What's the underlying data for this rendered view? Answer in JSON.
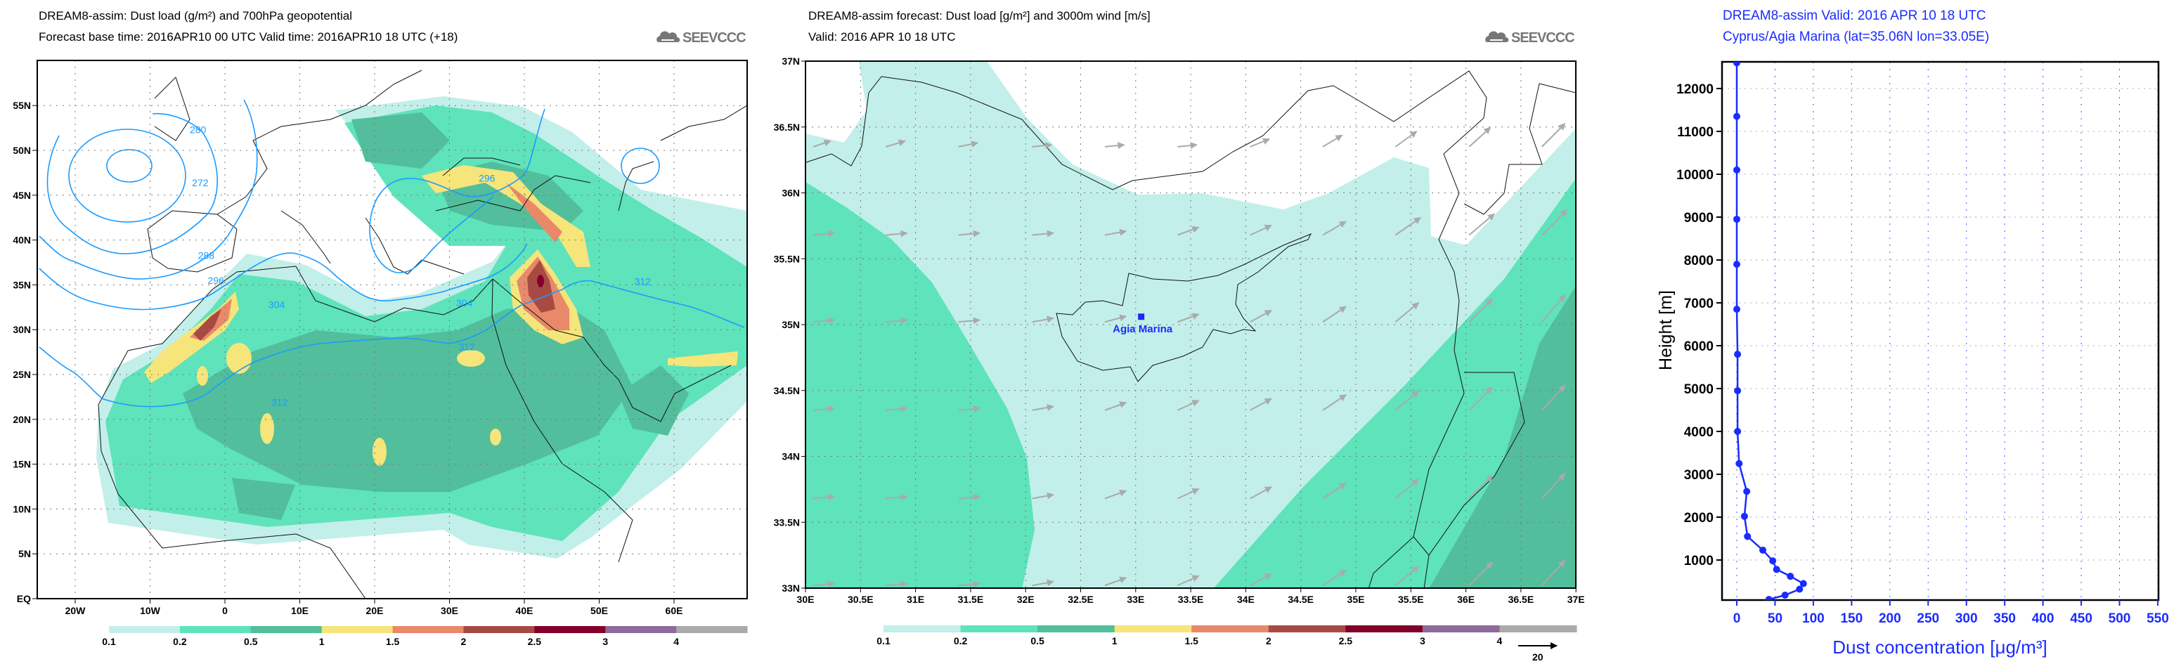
{
  "logo_text": "SEEVCCC",
  "colorbar": {
    "labels": [
      "0.1",
      "0.2",
      "0.5",
      "1",
      "1.5",
      "2",
      "2.5",
      "3",
      "4"
    ],
    "colors": [
      "#c2efe9",
      "#5ee3bb",
      "#52be9b",
      "#f5e57a",
      "#e9896a",
      "#a84a44",
      "#820029",
      "#8c6a9a",
      "#aaaaaa"
    ]
  },
  "left_map": {
    "title": "DREAM8-assim: Dust load (g/m²) and 700hPa geopotential",
    "subtitle": "Forecast base time: 2016APR10 00 UTC  Valid time: 2016APR10 18 UTC  (+18)",
    "lat_ticks": [
      {
        "v": 0,
        "l": "EQ"
      },
      {
        "v": 5,
        "l": "5N"
      },
      {
        "v": 10,
        "l": "10N"
      },
      {
        "v": 15,
        "l": "15N"
      },
      {
        "v": 20,
        "l": "20N"
      },
      {
        "v": 25,
        "l": "25N"
      },
      {
        "v": 30,
        "l": "30N"
      },
      {
        "v": 35,
        "l": "35N"
      },
      {
        "v": 40,
        "l": "40N"
      },
      {
        "v": 45,
        "l": "45N"
      },
      {
        "v": 50,
        "l": "50N"
      },
      {
        "v": 55,
        "l": "55N"
      }
    ],
    "lon_ticks": [
      {
        "v": -20,
        "l": "20W"
      },
      {
        "v": -10,
        "l": "10W"
      },
      {
        "v": 0,
        "l": "0"
      },
      {
        "v": 10,
        "l": "10E"
      },
      {
        "v": 20,
        "l": "20E"
      },
      {
        "v": 30,
        "l": "30E"
      },
      {
        "v": 40,
        "l": "40E"
      },
      {
        "v": 50,
        "l": "50E"
      },
      {
        "v": 60,
        "l": "60E"
      }
    ],
    "contour_labels": [
      {
        "text": "272",
        "lon": -3.3,
        "lat": 46.4
      },
      {
        "text": "280",
        "lon": -3.6,
        "lat": 52.3
      },
      {
        "text": "288",
        "lon": -2.5,
        "lat": 38.3
      },
      {
        "text": "296",
        "lon": -1.2,
        "lat": 35.5
      },
      {
        "text": "296",
        "lon": 35,
        "lat": 46.9
      },
      {
        "text": "304",
        "lon": 6.9,
        "lat": 32.8
      },
      {
        "text": "304",
        "lon": 32,
        "lat": 33.0
      },
      {
        "text": "312",
        "lon": 7.3,
        "lat": 21.9
      },
      {
        "text": "312",
        "lon": 32.3,
        "lat": 28.1
      },
      {
        "text": "312",
        "lon": 55.8,
        "lat": 35.4
      }
    ]
  },
  "mid_map": {
    "title": "DREAM8-assim forecast: Dust load [g/m²] and 3000m wind [m/s]",
    "subtitle": "Valid: 2016 APR 10   18 UTC",
    "lat_ticks": [
      {
        "v": 33,
        "l": "33N"
      },
      {
        "v": 33.5,
        "l": "33.5N"
      },
      {
        "v": 34,
        "l": "34N"
      },
      {
        "v": 34.5,
        "l": "34.5N"
      },
      {
        "v": 35,
        "l": "35N"
      },
      {
        "v": 35.5,
        "l": "35.5N"
      },
      {
        "v": 36,
        "l": "36N"
      },
      {
        "v": 36.5,
        "l": "36.5N"
      },
      {
        "v": 37,
        "l": "37N"
      }
    ],
    "lon_ticks": [
      {
        "v": 30,
        "l": "30E"
      },
      {
        "v": 30.5,
        "l": "30.5E"
      },
      {
        "v": 31,
        "l": "31E"
      },
      {
        "v": 31.5,
        "l": "31.5E"
      },
      {
        "v": 32,
        "l": "32E"
      },
      {
        "v": 32.5,
        "l": "32.5E"
      },
      {
        "v": 33,
        "l": "33E"
      },
      {
        "v": 33.5,
        "l": "33.5E"
      },
      {
        "v": 34,
        "l": "34E"
      },
      {
        "v": 34.5,
        "l": "34.5E"
      },
      {
        "v": 35,
        "l": "35E"
      },
      {
        "v": 35.5,
        "l": "35.5E"
      },
      {
        "v": 36,
        "l": "36E"
      },
      {
        "v": 36.5,
        "l": "36.5E"
      },
      {
        "v": 37,
        "l": "37E"
      }
    ],
    "station": {
      "name": "Agia Marina",
      "lat": 35.06,
      "lon": 33.05,
      "color": "#1a2bff"
    },
    "wind_key": {
      "speed": 20,
      "label": "20"
    },
    "wind": {
      "lats": [
        36.35,
        35.68,
        35.02,
        34.35,
        33.68,
        33.02
      ],
      "lons": [
        30.07,
        30.73,
        31.39,
        32.06,
        32.72,
        33.38,
        34.04,
        34.7,
        35.36,
        36.03,
        36.69
      ],
      "u": [
        [
          9,
          10,
          10,
          10,
          10,
          10,
          10,
          10,
          11,
          11,
          12
        ],
        [
          11,
          11,
          11,
          11,
          11,
          11,
          11,
          12,
          13,
          13,
          13
        ],
        [
          11,
          11,
          11,
          11,
          11,
          11,
          11,
          12,
          12,
          12,
          12
        ],
        [
          11,
          11,
          11,
          11,
          11,
          11,
          11,
          12,
          12,
          12,
          12
        ],
        [
          11,
          11,
          11,
          11,
          11,
          11,
          11,
          12,
          12,
          12,
          12
        ],
        [
          11,
          11,
          11,
          11,
          11,
          11,
          11,
          12,
          12,
          12,
          12
        ]
      ],
      "v": [
        [
          3,
          3,
          2,
          1,
          1,
          1,
          4,
          6,
          8,
          10,
          12
        ],
        [
          1,
          1,
          1,
          1,
          2,
          4,
          5,
          7,
          9,
          11,
          13
        ],
        [
          1,
          1,
          1,
          2,
          3,
          4,
          6,
          8,
          10,
          12,
          14
        ],
        [
          1,
          1,
          1,
          2,
          4,
          5,
          6,
          8,
          10,
          12,
          13
        ],
        [
          1,
          1,
          1,
          2,
          4,
          5,
          6,
          8,
          10,
          12,
          13
        ],
        [
          1,
          1,
          1,
          2,
          4,
          5,
          6,
          8,
          10,
          12,
          13
        ]
      ]
    }
  },
  "chart_data": {
    "type": "line",
    "title": "DREAM8-assim  Valid: 2016 APR 10   18 UTC",
    "subtitle": "Cyprus/Agia Marina (lat=35.06N lon=33.05E)",
    "xlabel": "Dust concentration [μg/m³]",
    "ylabel": "Height [m]",
    "xlim": [
      -20,
      550
    ],
    "ylim": [
      65,
      12620
    ],
    "x_ticks": [
      0,
      50,
      100,
      150,
      200,
      250,
      300,
      350,
      400,
      450,
      500,
      550
    ],
    "y_ticks": [
      1000,
      2000,
      3000,
      4000,
      5000,
      6000,
      7000,
      8000,
      9000,
      10000,
      11000,
      12000
    ],
    "grid": true,
    "series": [
      {
        "name": "Dust concentration",
        "color": "#1a2bff",
        "points": [
          {
            "x": 0,
            "y": 12600
          },
          {
            "x": 0,
            "y": 11350
          },
          {
            "x": 0,
            "y": 10100
          },
          {
            "x": 0,
            "y": 8950
          },
          {
            "x": 0,
            "y": 7900
          },
          {
            "x": 0,
            "y": 6850
          },
          {
            "x": 1,
            "y": 5800
          },
          {
            "x": 1,
            "y": 4950
          },
          {
            "x": 1,
            "y": 4000
          },
          {
            "x": 3,
            "y": 3250
          },
          {
            "x": 13,
            "y": 2600
          },
          {
            "x": 10,
            "y": 2020
          },
          {
            "x": 14,
            "y": 1550
          },
          {
            "x": 34,
            "y": 1230
          },
          {
            "x": 47,
            "y": 980
          },
          {
            "x": 52,
            "y": 780
          },
          {
            "x": 70,
            "y": 620
          },
          {
            "x": 87,
            "y": 450
          },
          {
            "x": 82,
            "y": 320
          },
          {
            "x": 63,
            "y": 180
          },
          {
            "x": 42,
            "y": 80
          }
        ]
      }
    ]
  }
}
